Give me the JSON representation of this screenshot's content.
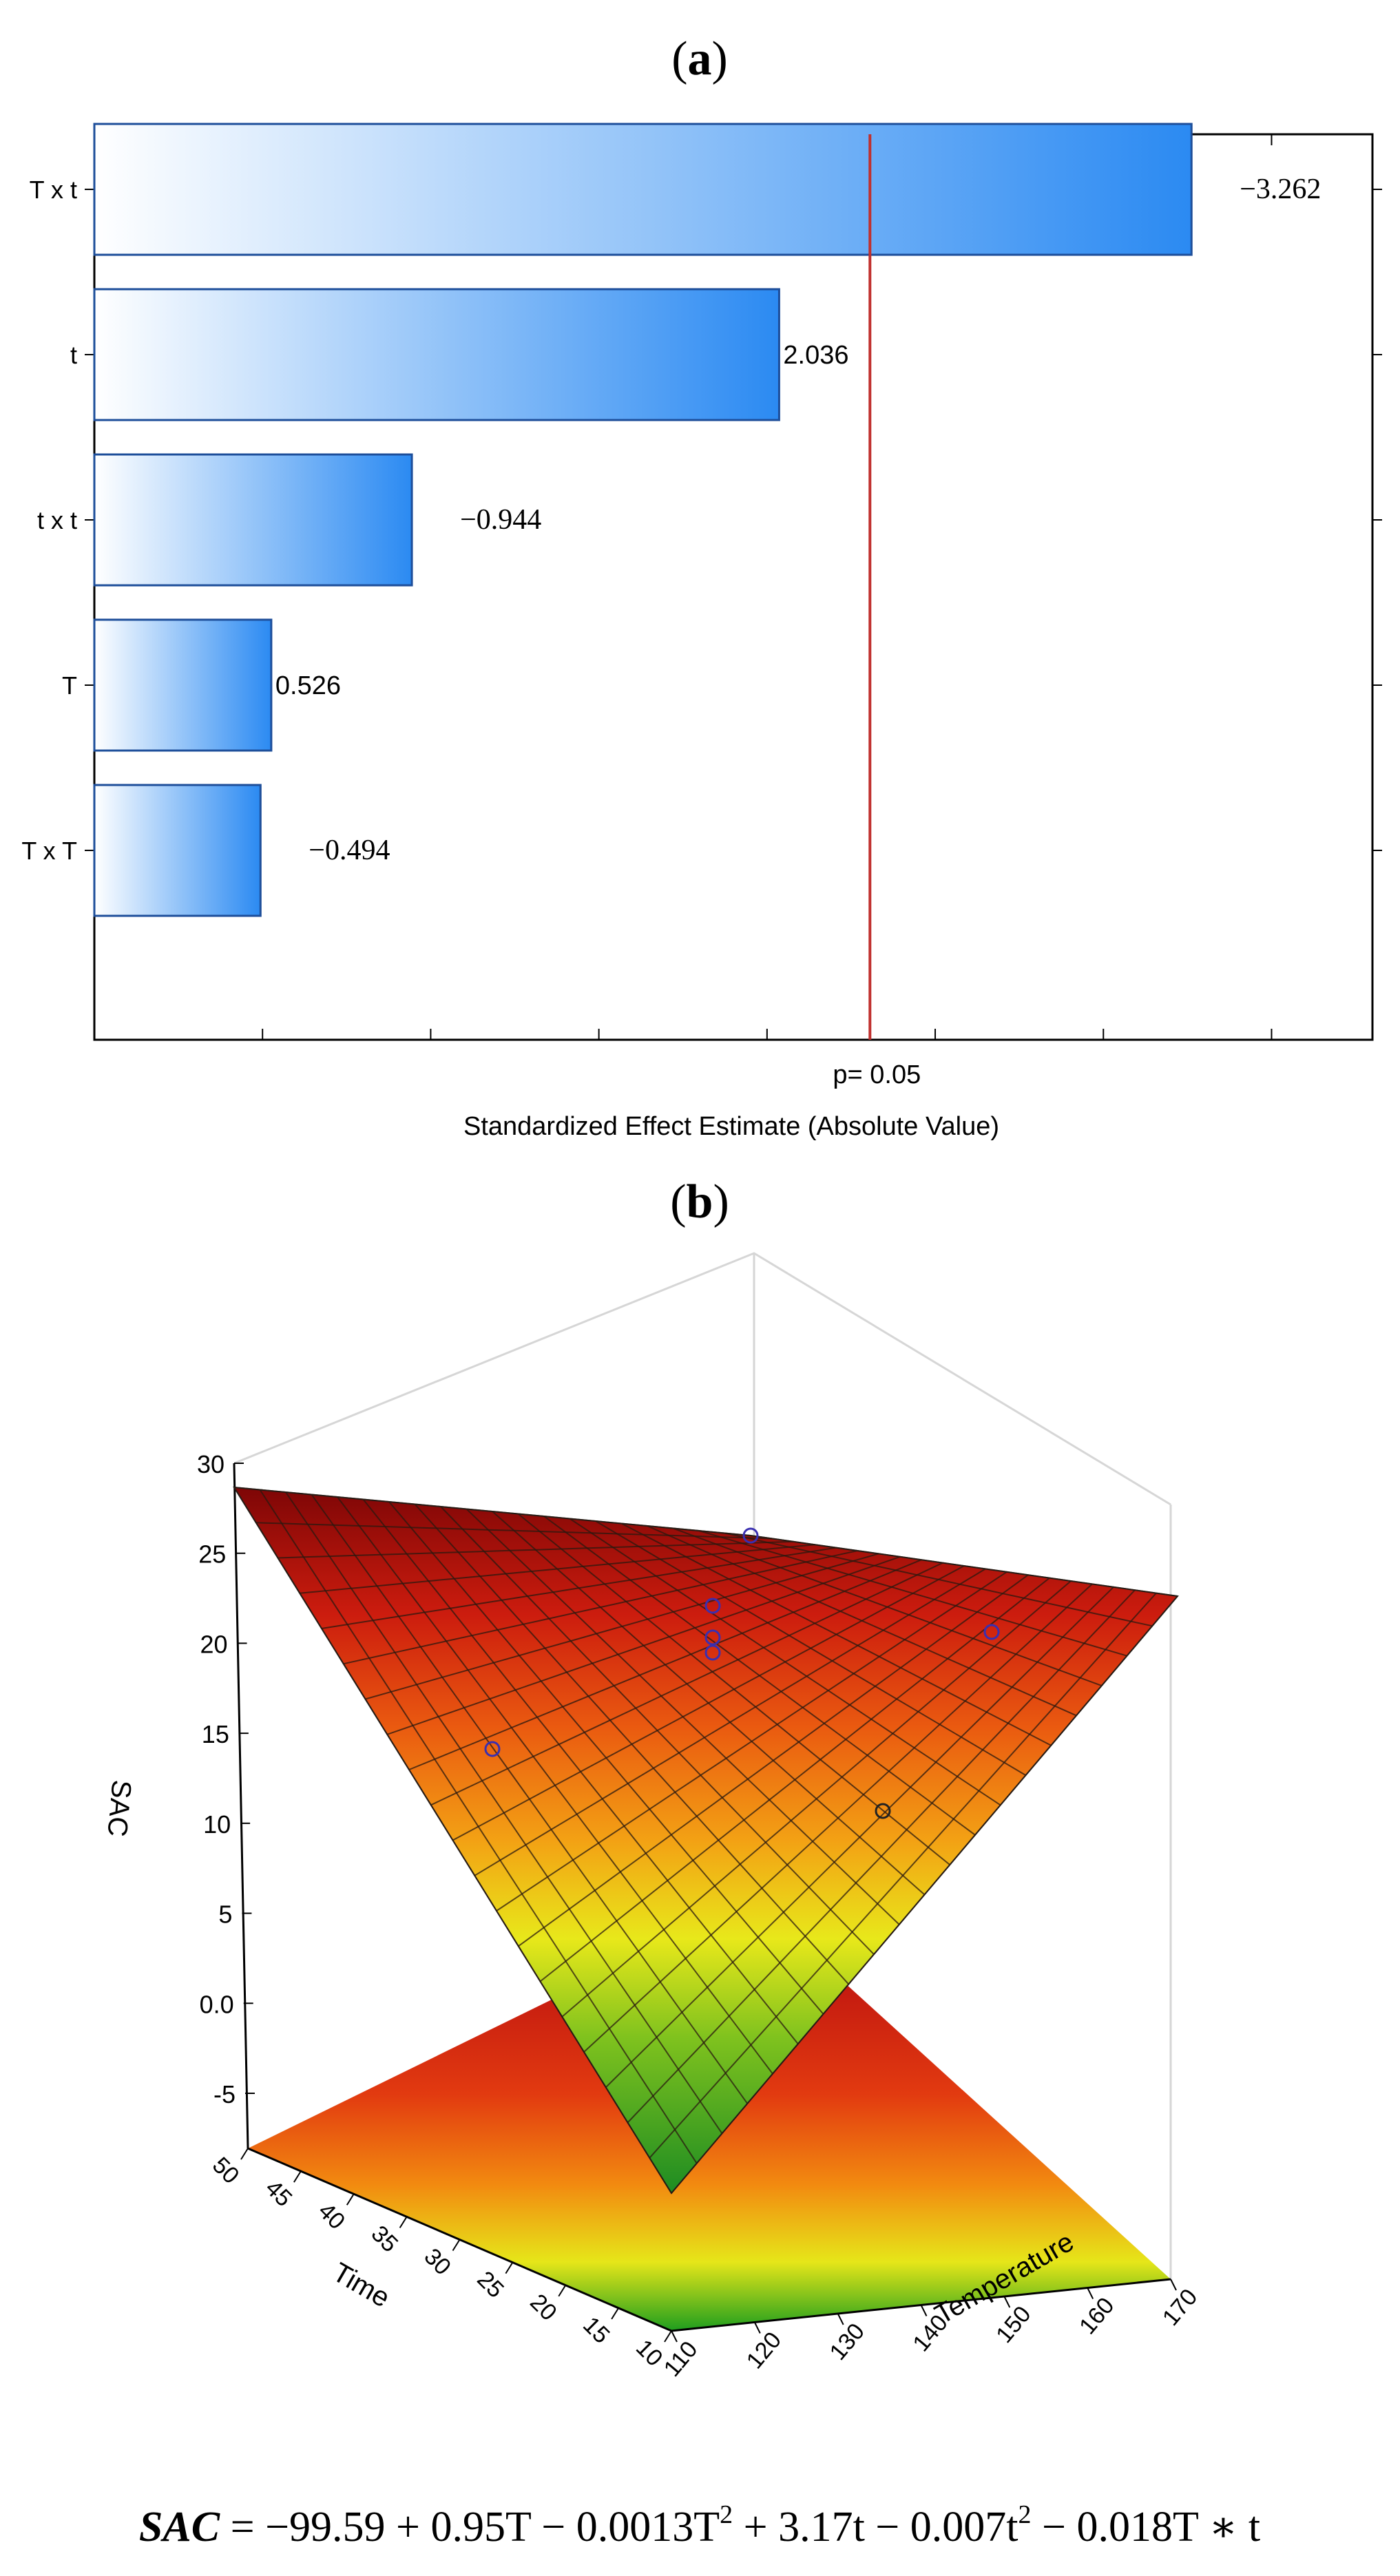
{
  "panel_a": {
    "label_open": "(",
    "label": "a",
    "label_close": ")"
  },
  "panel_b": {
    "label_open": "(",
    "label": "b",
    "label_close": ")"
  },
  "chart_data": [
    {
      "type": "bar",
      "orientation": "horizontal",
      "categories": [
        "T x t",
        "t",
        "t x t",
        "T",
        "T x T"
      ],
      "values": [
        3.262,
        2.036,
        0.944,
        0.526,
        0.494
      ],
      "value_labels": [
        "−3.262",
        "2.036",
        "−0.944",
        "0.526",
        "−0.494"
      ],
      "xlabel": "Standardized Effect Estimate (Absolute Value)",
      "xlim": [
        0,
        3.8
      ],
      "reference_line": {
        "value": 2.306,
        "label": "p= 0.05",
        "color": "#c0302e"
      },
      "bar_gradient": [
        "#ffffff",
        "#2b8af2"
      ],
      "grid": false
    },
    {
      "type": "surface3d",
      "zlabel": "SAC",
      "ylabel": "Time",
      "xlabel": "Temperature",
      "x_ticks": [
        "110",
        "120",
        "130",
        "140",
        "150",
        "160",
        "170"
      ],
      "y_ticks": [
        "10",
        "15",
        "20",
        "25",
        "30",
        "35",
        "40",
        "45",
        "50"
      ],
      "z_ticks": [
        "30",
        "25",
        "20",
        "15",
        "10",
        "5",
        "0.0",
        "-5"
      ],
      "xlim": [
        110,
        170
      ],
      "ylim": [
        10,
        50
      ],
      "zlim": [
        -5,
        30
      ],
      "colormap": [
        "#1a9d1a",
        "#e8e81a",
        "#f07a10",
        "#d21e10",
        "#7a0000"
      ],
      "points": [
        {
          "T": 140,
          "t": 30,
          "SAC": 27
        },
        {
          "T": 140,
          "t": 30,
          "SAC": 24
        },
        {
          "T": 140,
          "t": 30,
          "SAC": 22
        },
        {
          "T": 140,
          "t": 30,
          "SAC": 21
        },
        {
          "T": 110,
          "t": 30,
          "SAC": 12
        },
        {
          "T": 140,
          "t": 50,
          "SAC": 25
        },
        {
          "T": 170,
          "t": 30,
          "SAC": 14
        }
      ],
      "grid": true
    }
  ],
  "equation": {
    "lhs": "SAC",
    "rhs": " = −99.59 + 0.95T − 0.0013T",
    "sup1": "2",
    "mid": " + 3.17t − 0.007t",
    "sup2": "2",
    "tail": " − 0.018T ∗ t"
  }
}
